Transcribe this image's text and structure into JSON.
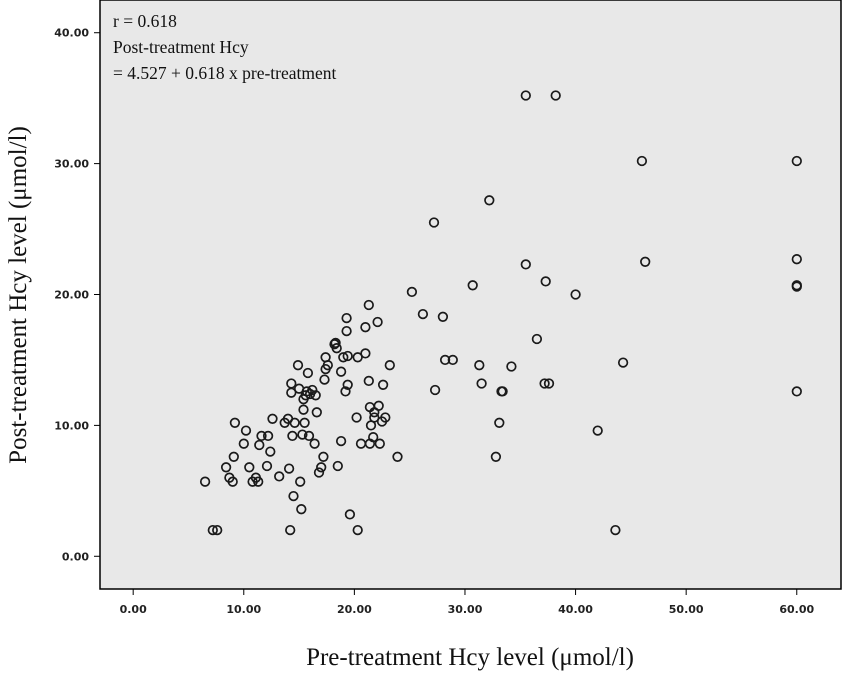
{
  "chart_data": {
    "type": "scatter",
    "title": "",
    "xlabel": "Pre-treatment Hcy level (μmol/l)",
    "ylabel": "Post-treatment Hcy level (μmol/l)",
    "xlim": [
      -3,
      64
    ],
    "ylim": [
      -2.5,
      42.5
    ],
    "x_ticks": [
      0,
      10,
      20,
      30,
      40,
      50,
      60
    ],
    "y_ticks": [
      0,
      10,
      20,
      30,
      40
    ],
    "x_tick_labels": [
      "0.00",
      "10.00",
      "20.00",
      "30.00",
      "40.00",
      "50.00",
      "60.00"
    ],
    "y_tick_labels": [
      "0.00",
      "10.00",
      "20.00",
      "30.00",
      "40.00"
    ],
    "grid": false,
    "plot_background": "#e8e8e8",
    "marker_color": "#1a1a1a",
    "annotations": [
      "r = 0.618",
      "Post-treatment Hcy",
      "= 4.527 + 0.618 x pre-treatment"
    ],
    "points": [
      [
        6.5,
        5.7
      ],
      [
        7.2,
        2.0
      ],
      [
        7.6,
        2.0
      ],
      [
        8.4,
        6.8
      ],
      [
        8.7,
        6.0
      ],
      [
        9.0,
        5.7
      ],
      [
        9.1,
        7.6
      ],
      [
        9.2,
        10.2
      ],
      [
        10.0,
        8.6
      ],
      [
        10.2,
        9.6
      ],
      [
        10.5,
        6.8
      ],
      [
        10.8,
        5.7
      ],
      [
        11.1,
        6.0
      ],
      [
        11.3,
        5.7
      ],
      [
        11.4,
        8.5
      ],
      [
        11.6,
        9.2
      ],
      [
        12.1,
        6.9
      ],
      [
        12.2,
        9.2
      ],
      [
        12.4,
        8.0
      ],
      [
        12.6,
        10.5
      ],
      [
        13.2,
        6.1
      ],
      [
        13.7,
        10.2
      ],
      [
        14.0,
        10.5
      ],
      [
        14.1,
        6.7
      ],
      [
        14.2,
        2.0
      ],
      [
        14.3,
        13.2
      ],
      [
        14.3,
        12.5
      ],
      [
        14.4,
        9.2
      ],
      [
        14.5,
        4.6
      ],
      [
        14.6,
        10.2
      ],
      [
        14.9,
        14.6
      ],
      [
        15.0,
        12.8
      ],
      [
        15.1,
        5.7
      ],
      [
        15.2,
        3.6
      ],
      [
        15.3,
        9.3
      ],
      [
        15.4,
        11.2
      ],
      [
        15.4,
        12.0
      ],
      [
        15.5,
        10.2
      ],
      [
        15.6,
        12.3
      ],
      [
        15.7,
        12.6
      ],
      [
        15.8,
        14.0
      ],
      [
        15.9,
        9.2
      ],
      [
        16.0,
        12.4
      ],
      [
        16.2,
        12.7
      ],
      [
        16.4,
        8.6
      ],
      [
        16.5,
        12.3
      ],
      [
        16.6,
        11.0
      ],
      [
        16.8,
        6.4
      ],
      [
        17.0,
        6.8
      ],
      [
        17.2,
        7.6
      ],
      [
        17.3,
        13.5
      ],
      [
        17.4,
        15.2
      ],
      [
        17.4,
        14.3
      ],
      [
        17.6,
        14.6
      ],
      [
        18.2,
        16.2
      ],
      [
        18.3,
        16.3
      ],
      [
        18.4,
        15.9
      ],
      [
        18.5,
        6.9
      ],
      [
        18.8,
        14.1
      ],
      [
        18.8,
        8.8
      ],
      [
        19.0,
        15.2
      ],
      [
        19.2,
        12.6
      ],
      [
        19.3,
        17.2
      ],
      [
        19.3,
        18.2
      ],
      [
        19.4,
        13.1
      ],
      [
        19.4,
        15.3
      ],
      [
        19.6,
        3.2
      ],
      [
        20.2,
        10.6
      ],
      [
        20.3,
        15.2
      ],
      [
        20.3,
        2.0
      ],
      [
        20.6,
        8.6
      ],
      [
        21.0,
        15.5
      ],
      [
        21.0,
        17.5
      ],
      [
        21.3,
        19.2
      ],
      [
        21.3,
        13.4
      ],
      [
        21.4,
        8.6
      ],
      [
        21.4,
        11.4
      ],
      [
        21.5,
        10.0
      ],
      [
        21.7,
        9.1
      ],
      [
        21.8,
        10.6
      ],
      [
        21.8,
        11.0
      ],
      [
        22.1,
        17.9
      ],
      [
        22.2,
        11.5
      ],
      [
        22.3,
        8.6
      ],
      [
        22.5,
        10.3
      ],
      [
        22.6,
        13.1
      ],
      [
        22.8,
        10.6
      ],
      [
        23.2,
        14.6
      ],
      [
        23.9,
        7.6
      ],
      [
        25.2,
        20.2
      ],
      [
        26.2,
        18.5
      ],
      [
        27.2,
        25.5
      ],
      [
        27.3,
        12.7
      ],
      [
        28.0,
        18.3
      ],
      [
        28.2,
        15.0
      ],
      [
        28.9,
        15.0
      ],
      [
        30.7,
        20.7
      ],
      [
        31.3,
        14.6
      ],
      [
        31.5,
        13.2
      ],
      [
        32.2,
        27.2
      ],
      [
        32.8,
        7.6
      ],
      [
        33.1,
        10.2
      ],
      [
        33.3,
        12.6
      ],
      [
        33.4,
        12.6
      ],
      [
        34.2,
        14.5
      ],
      [
        35.5,
        22.3
      ],
      [
        35.5,
        35.2
      ],
      [
        36.5,
        16.6
      ],
      [
        37.2,
        13.2
      ],
      [
        37.3,
        21.0
      ],
      [
        37.6,
        13.2
      ],
      [
        38.2,
        35.2
      ],
      [
        40.0,
        20.0
      ],
      [
        42.0,
        9.6
      ],
      [
        43.6,
        2.0
      ],
      [
        44.3,
        14.8
      ],
      [
        46.0,
        30.2
      ],
      [
        46.3,
        22.5
      ],
      [
        60.0,
        30.2
      ],
      [
        60.0,
        22.7
      ],
      [
        60.0,
        20.7
      ],
      [
        60.0,
        20.6
      ],
      [
        60.0,
        12.6
      ]
    ]
  }
}
